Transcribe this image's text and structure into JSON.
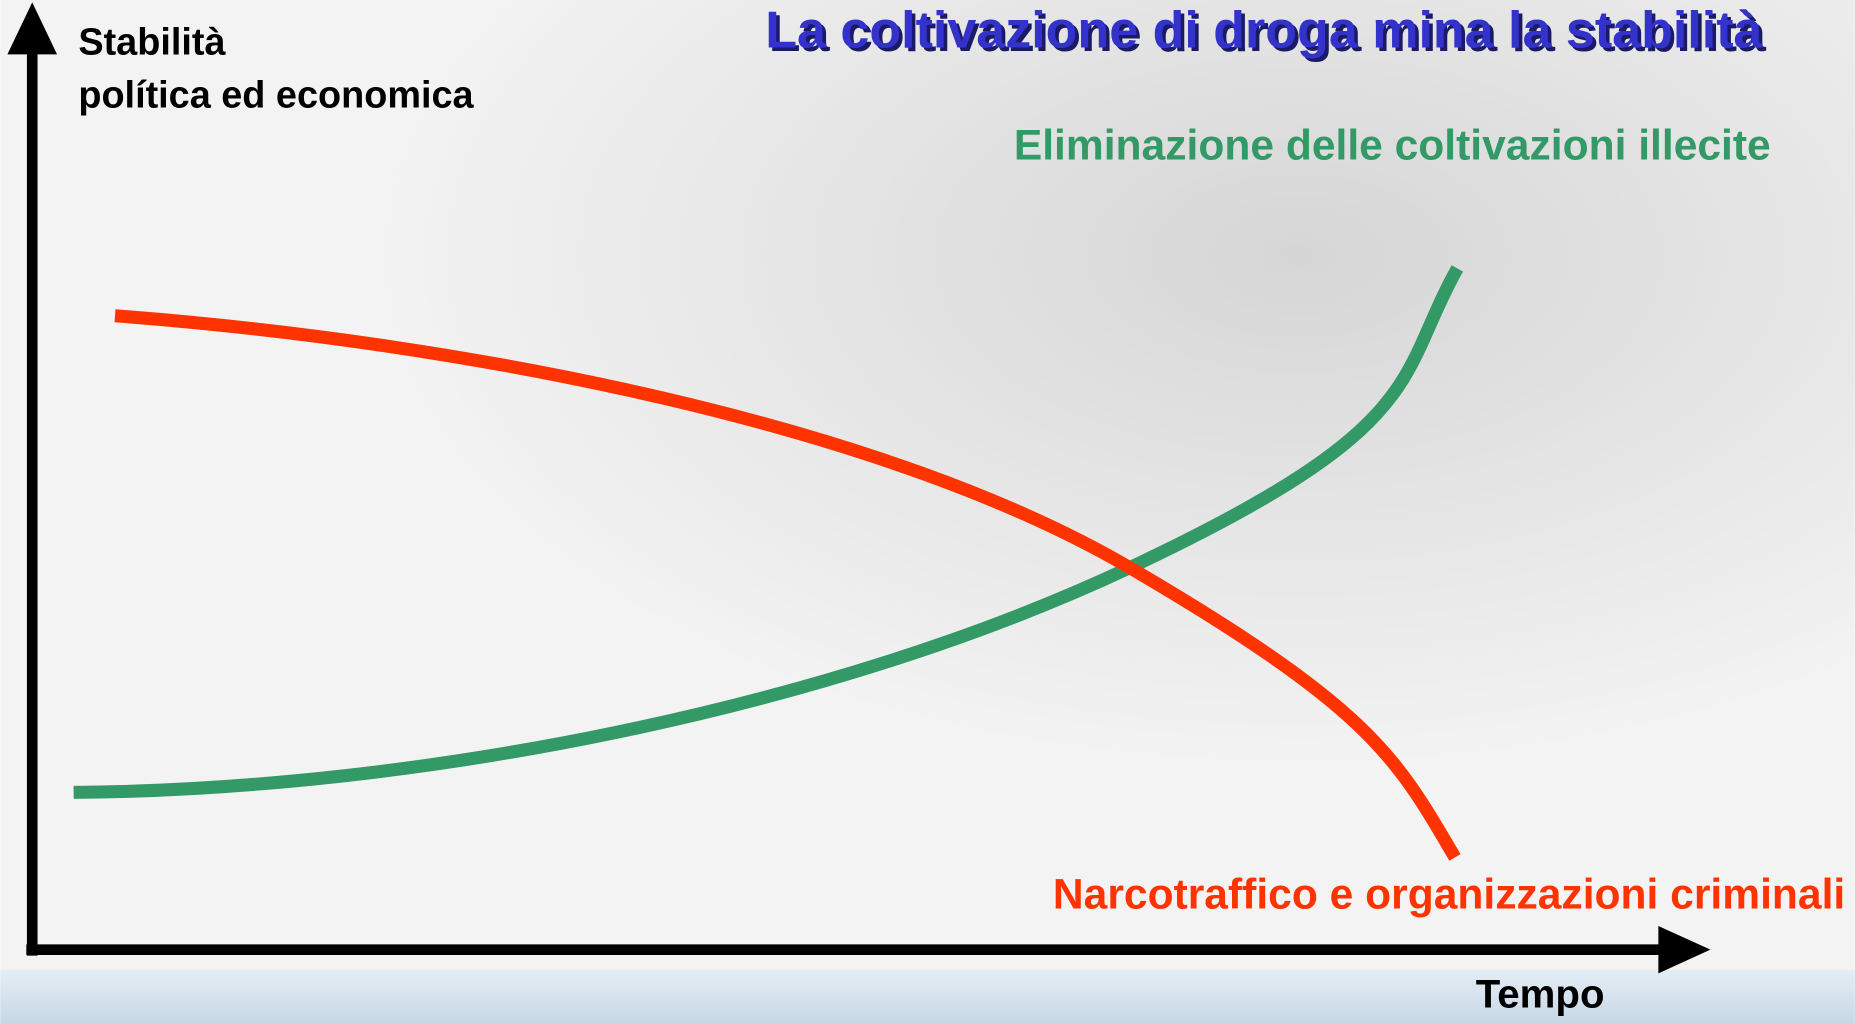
{
  "title": "La coltivazione di droga mina la stabilità",
  "y_axis_label": [
    "Stabilità",
    "política ed economica"
  ],
  "x_axis_label": "Tempo",
  "curves": [
    {
      "label": "Eliminazione delle coltivazioni illecite",
      "color": "#339966"
    },
    {
      "label": "Narcotraffico e organizzazioni criminali",
      "color": "#ff3300"
    }
  ]
}
